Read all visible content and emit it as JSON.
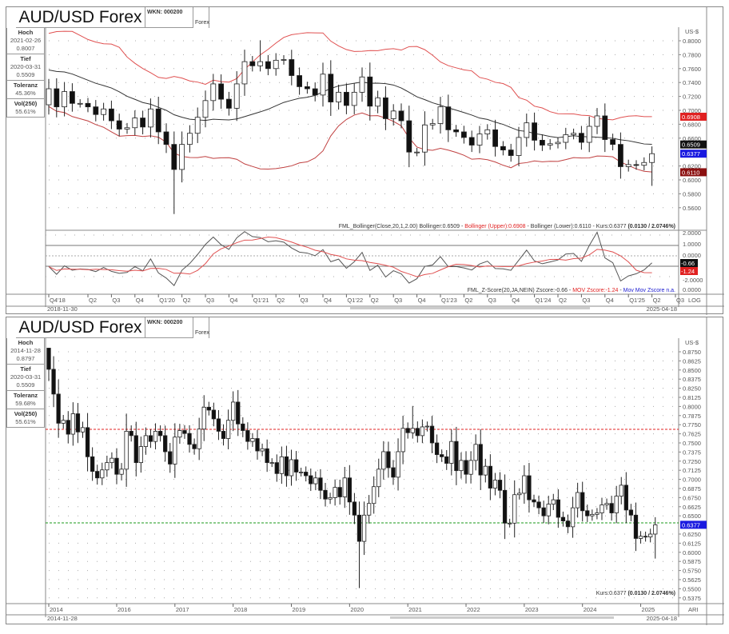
{
  "charts": [
    {
      "title": "AUD/USD Forex",
      "wkn": "WKN: 000200",
      "exchange": "Forex",
      "stats": [
        {
          "label": "Hoch",
          "date": "2021-02-26",
          "value": "0.8007"
        },
        {
          "label": "Tief",
          "date": "2020-03-31",
          "value": "0.5509"
        },
        {
          "label": "Toleranz",
          "value": "45.36%"
        },
        {
          "label": "Vol(250)",
          "value": "55.61%"
        }
      ],
      "currency": "US-$",
      "start_date": "2018-11-30",
      "end_date": "2025-04-18",
      "scale": "LOG",
      "legend": {
        "main": "FML_Bollinger(Close,20,1,2.00) Bollinger:0.6509 - ",
        "upper": "Bollinger (Upper):0.6908",
        "mid": " - Bollinger (Lower):0.6110 - Kurs:0.6377 ",
        "change": "(0.0130 / 2.0746%)"
      },
      "sub_legend": {
        "main": "FML_Z-Score(20,JA,NEIN) Zscore:-0.66 - ",
        "mov": "MOV Zscore:-1.24",
        "sep": " - ",
        "movmov": "Mov Mov Zscore n.a."
      },
      "price_badges": [
        {
          "text": "0.6908",
          "color": "#e02020",
          "value": 0.6908
        },
        {
          "text": "0.6509",
          "color": "#111111",
          "value": 0.6509
        },
        {
          "text": "0.6377",
          "color": "#1a1ae0",
          "value": 0.6377
        },
        {
          "text": "0.6110",
          "color": "#8b1010",
          "value": 0.611
        }
      ],
      "sub_badges": [
        {
          "text": "-0.66",
          "color": "#111111"
        },
        {
          "text": "-1.24",
          "color": "#e02020"
        }
      ],
      "yticks": [
        "0.8000",
        "0.7800",
        "0.7600",
        "0.7400",
        "0.7200",
        "0.7000",
        "0.6800",
        "0.6600",
        "0.6200",
        "0.6000",
        "0.5800",
        "0.5600"
      ],
      "sub_yticks": [
        "2.0000",
        "1.0000",
        "0.0000",
        "-2.0000",
        "0.0000"
      ],
      "xticks": [
        "Q4'18",
        "Q2",
        "Q3",
        "Q4",
        "Q1'20",
        "Q2",
        "Q3",
        "Q4",
        "Q1'21",
        "Q2",
        "Q3",
        "Q4",
        "Q1'22",
        "Q2",
        "Q3",
        "Q4",
        "Q1'23",
        "Q2",
        "Q3",
        "Q4",
        "Q1'24",
        "Q2",
        "Q3",
        "Q4",
        "Q1'25",
        "Q2",
        "Q3"
      ]
    },
    {
      "title": "AUD/USD Forex",
      "wkn": "WKN: 000200",
      "exchange": "Forex",
      "stats": [
        {
          "label": "Hoch",
          "date": "2014-11-28",
          "value": "0.8797"
        },
        {
          "label": "Tief",
          "date": "2020-03-31",
          "value": "0.5509"
        },
        {
          "label": "Toleranz",
          "value": "59.68%"
        },
        {
          "label": "Vol(250)",
          "value": "55.61%"
        }
      ],
      "currency": "US-$",
      "start_date": "2014-11-28",
      "end_date": "2025-04-18",
      "scale": "ARI",
      "legend": {
        "main": "Kurs:0.6377 ",
        "change": "(0.0130 / 2.0746%)"
      },
      "price_badges": [
        {
          "text": "0.6377",
          "color": "#1a1ae0",
          "value": 0.6377
        }
      ],
      "levels": [
        {
          "value": 0.7686,
          "color": "#e02020"
        },
        {
          "value": 0.6404,
          "color": "#1a9a1a"
        }
      ],
      "yticks": [
        "0.8750",
        "0.8625",
        "0.8500",
        "0.8375",
        "0.8250",
        "0.8125",
        "0.8000",
        "0.7875",
        "0.7750",
        "0.7625",
        "0.7500",
        "0.7375",
        "0.7250",
        "0.7125",
        "0.7000",
        "0.6875",
        "0.6750",
        "0.6625",
        "0.6500",
        "0.6250",
        "0.6125",
        "0.6000",
        "0.5875",
        "0.5750",
        "0.5625",
        "0.5500",
        "0.5375"
      ],
      "xticks": [
        "2014",
        "2016",
        "2017",
        "2018",
        "2019",
        "2020",
        "2021",
        "2022",
        "2023",
        "2024",
        "2025"
      ]
    }
  ],
  "chart_data": {
    "type": "candlestick",
    "title": "AUD/USD Forex",
    "period": "monthly",
    "first_month": "2014-11",
    "top_chart_first_index": 48,
    "closes": [
      0.851,
      0.817,
      0.777,
      0.781,
      0.762,
      0.79,
      0.765,
      0.771,
      0.731,
      0.711,
      0.702,
      0.713,
      0.723,
      0.729,
      0.707,
      0.714,
      0.766,
      0.76,
      0.723,
      0.745,
      0.76,
      0.752,
      0.766,
      0.76,
      0.738,
      0.721,
      0.758,
      0.767,
      0.763,
      0.748,
      0.742,
      0.769,
      0.799,
      0.795,
      0.783,
      0.766,
      0.756,
      0.781,
      0.806,
      0.776,
      0.767,
      0.752,
      0.756,
      0.739,
      0.742,
      0.723,
      0.723,
      0.708,
      0.731,
      0.705,
      0.727,
      0.71,
      0.71,
      0.705,
      0.694,
      0.702,
      0.685,
      0.673,
      0.675,
      0.689,
      0.676,
      0.702,
      0.669,
      0.651,
      0.615,
      0.651,
      0.667,
      0.69,
      0.714,
      0.738,
      0.716,
      0.703,
      0.738,
      0.77,
      0.764,
      0.77,
      0.76,
      0.772,
      0.773,
      0.75,
      0.734,
      0.731,
      0.722,
      0.752,
      0.712,
      0.726,
      0.707,
      0.726,
      0.748,
      0.706,
      0.718,
      0.688,
      0.699,
      0.685,
      0.64,
      0.64,
      0.679,
      0.681,
      0.705,
      0.672,
      0.669,
      0.661,
      0.65,
      0.666,
      0.672,
      0.648,
      0.643,
      0.635,
      0.661,
      0.682,
      0.657,
      0.65,
      0.652,
      0.654,
      0.665,
      0.667,
      0.654,
      0.677,
      0.692,
      0.658,
      0.651,
      0.619,
      0.622,
      0.621,
      0.625,
      0.6377
    ],
    "first_open": 0.88,
    "high": 0.8797,
    "low": 0.5509,
    "last": 0.6377,
    "change": 0.013,
    "change_pct": 2.0746
  }
}
